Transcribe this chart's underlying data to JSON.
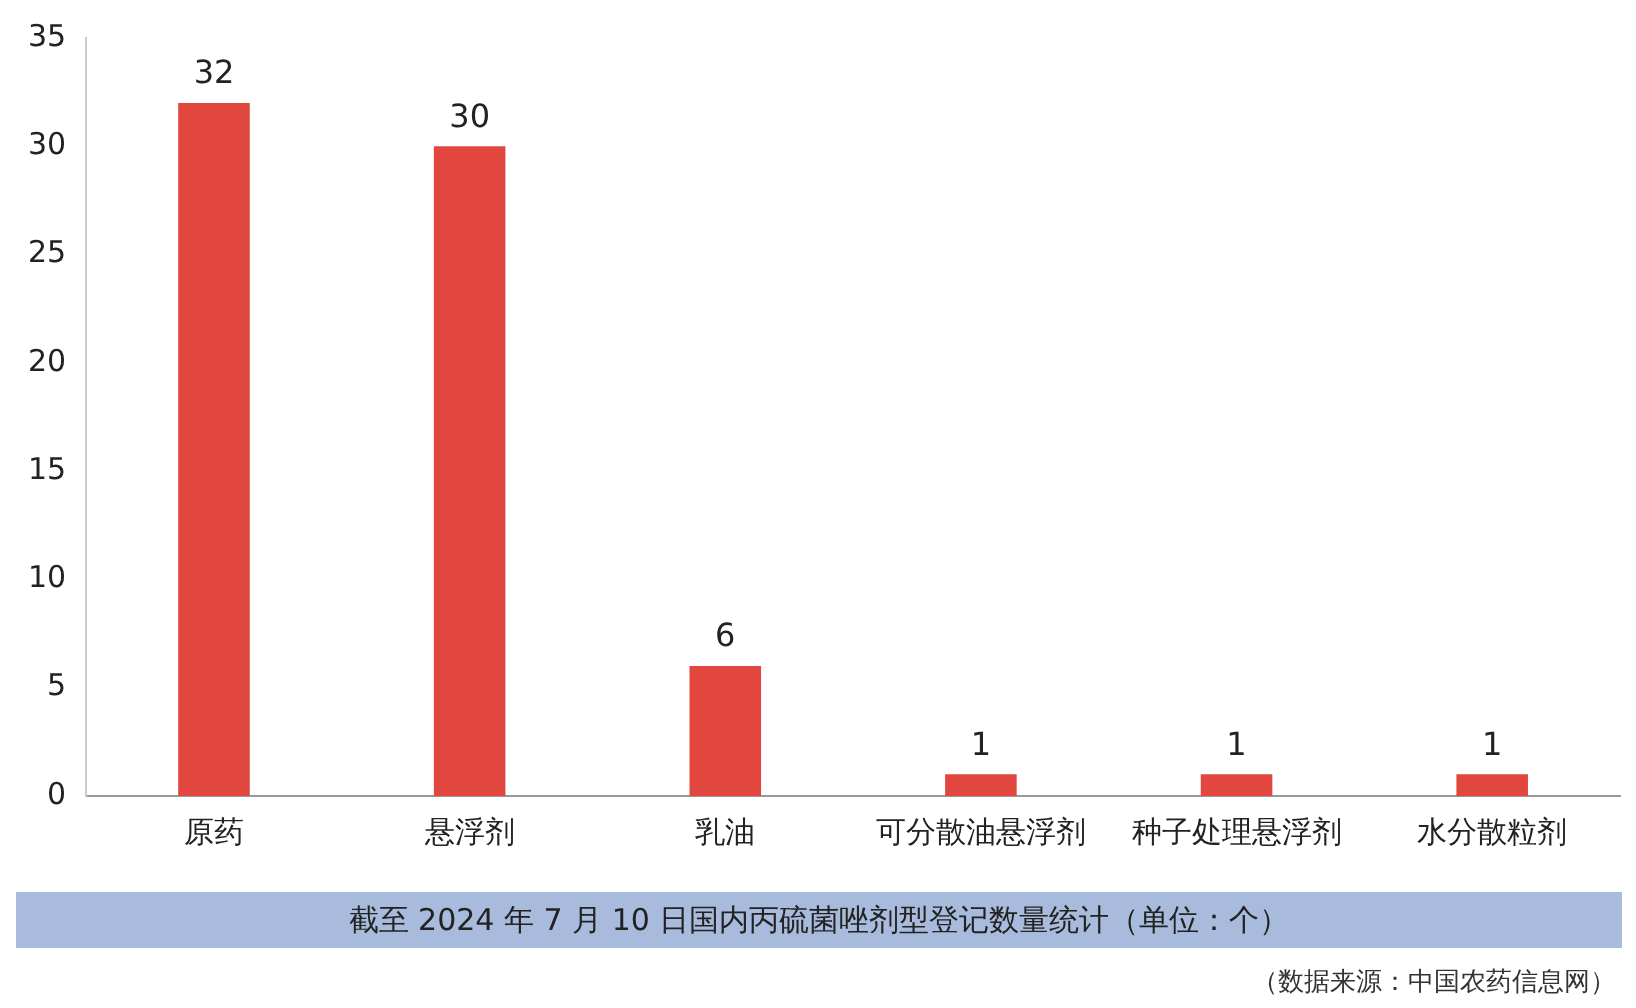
{
  "chart_data": {
    "type": "bar",
    "title": "截至 2024 年 7 月 10 日国内丙硫菌唑剂型登记数量统计（单位：个）",
    "categories": [
      "原药",
      "悬浮剂",
      "乳油",
      "可分散油悬浮剂",
      "种子处理悬浮剂",
      "水分散粒剂"
    ],
    "values": [
      32,
      30,
      6,
      1,
      1,
      1
    ],
    "color": "#e2473f",
    "ylim": [
      0,
      35
    ],
    "yticks": [
      0,
      5,
      10,
      15,
      20,
      25,
      30,
      35
    ],
    "grid": false,
    "data_labels": true,
    "annotations": [
      "（数据来源：中国农药信息网）"
    ]
  }
}
